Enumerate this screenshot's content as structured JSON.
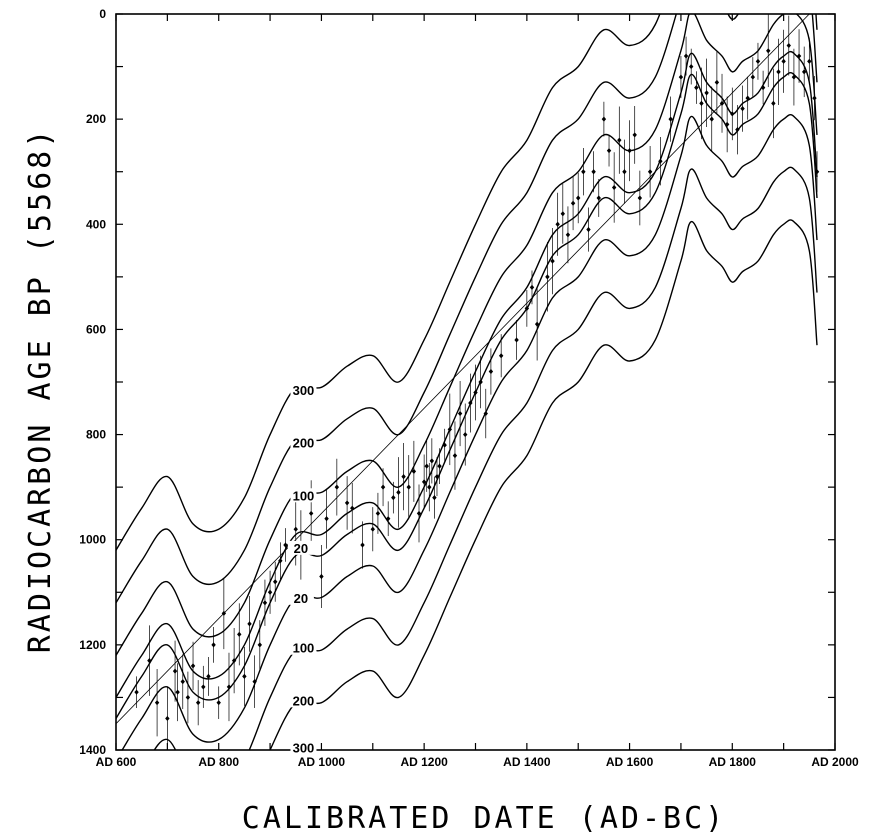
{
  "chart_data": {
    "type": "scatter",
    "xlabel": "CALIBRATED DATE (AD-BC)",
    "ylabel": "RADIOCARBON AGE BP (5568)",
    "x_tick_labels": [
      "AD 600",
      "AD 800",
      "AD 1000",
      "AD 1200",
      "AD 1400",
      "AD 1600",
      "AD 1800",
      "AD 2000"
    ],
    "y_tick_labels": [
      "0",
      "200",
      "400",
      "600",
      "800",
      "1000",
      "1200",
      "1400"
    ],
    "xlim": [
      600,
      2000
    ],
    "ylim": [
      0,
      1400
    ],
    "y_inverted": true,
    "grid": false,
    "curve_labels": [
      {
        "text": "300",
        "x": 965,
        "y": 725
      },
      {
        "text": "200",
        "x": 965,
        "y": 825
      },
      {
        "text": "100",
        "x": 965,
        "y": 925
      },
      {
        "text": "20",
        "x": 960,
        "y": 1025
      },
      {
        "text": "20",
        "x": 960,
        "y": 1120
      },
      {
        "text": "100",
        "x": 965,
        "y": 1215
      },
      {
        "text": "200",
        "x": 965,
        "y": 1315
      },
      {
        "text": "300",
        "x": 965,
        "y": 1405
      }
    ],
    "reference_line": {
      "x": [
        600,
        1950
      ],
      "y": [
        1350,
        0
      ]
    },
    "calibration_curve": {
      "x": [
        600,
        650,
        700,
        750,
        800,
        850,
        900,
        950,
        1000,
        1050,
        1100,
        1150,
        1200,
        1250,
        1300,
        1350,
        1400,
        1450,
        1500,
        1550,
        1600,
        1650,
        1700,
        1720,
        1750,
        1780,
        1800,
        1820,
        1850,
        1880,
        1900,
        1920,
        1950,
        1965
      ],
      "y": [
        1320,
        1240,
        1180,
        1270,
        1280,
        1220,
        1100,
        1010,
        1010,
        970,
        950,
        1000,
        920,
        810,
        700,
        600,
        540,
        440,
        400,
        330,
        360,
        320,
        170,
        95,
        150,
        180,
        210,
        190,
        170,
        120,
        100,
        95,
        150,
        330
      ]
    },
    "offset_curves": [
      {
        "name": "+300",
        "offset": 300
      },
      {
        "name": "+200",
        "offset": 200
      },
      {
        "name": "+100",
        "offset": 100
      },
      {
        "name": "+20",
        "offset": 20
      },
      {
        "name": "-20",
        "offset": -20
      },
      {
        "name": "-100",
        "offset": -100
      },
      {
        "name": "-200",
        "offset": -200
      },
      {
        "name": "-300",
        "offset": -300
      }
    ],
    "data_points": {
      "x": [
        640,
        665,
        680,
        700,
        715,
        720,
        730,
        740,
        750,
        760,
        770,
        780,
        790,
        800,
        810,
        820,
        830,
        840,
        850,
        860,
        870,
        880,
        890,
        900,
        910,
        920,
        930,
        950,
        960,
        980,
        1000,
        1010,
        1030,
        1050,
        1060,
        1080,
        1100,
        1110,
        1120,
        1130,
        1140,
        1150,
        1160,
        1170,
        1180,
        1190,
        1200,
        1205,
        1210,
        1215,
        1220,
        1225,
        1230,
        1240,
        1250,
        1260,
        1270,
        1280,
        1290,
        1300,
        1310,
        1320,
        1330,
        1350,
        1380,
        1400,
        1410,
        1420,
        1440,
        1450,
        1460,
        1470,
        1480,
        1490,
        1500,
        1510,
        1520,
        1530,
        1540,
        1550,
        1560,
        1570,
        1580,
        1590,
        1600,
        1610,
        1620,
        1640,
        1660,
        1680,
        1700,
        1710,
        1720,
        1730,
        1740,
        1750,
        1760,
        1770,
        1780,
        1790,
        1800,
        1810,
        1820,
        1830,
        1840,
        1850,
        1860,
        1870,
        1880,
        1890,
        1900,
        1910,
        1920,
        1930,
        1940,
        1950,
        1960,
        1965
      ],
      "y": [
        1290,
        1230,
        1310,
        1340,
        1250,
        1290,
        1270,
        1300,
        1240,
        1310,
        1280,
        1260,
        1200,
        1310,
        1140,
        1280,
        1230,
        1180,
        1260,
        1160,
        1270,
        1200,
        1120,
        1100,
        1080,
        1040,
        1010,
        980,
        1010,
        950,
        1070,
        960,
        900,
        930,
        940,
        1010,
        980,
        950,
        900,
        960,
        920,
        910,
        880,
        900,
        870,
        950,
        890,
        860,
        900,
        850,
        920,
        880,
        860,
        820,
        790,
        840,
        760,
        800,
        740,
        720,
        700,
        760,
        680,
        650,
        620,
        560,
        520,
        590,
        500,
        470,
        400,
        380,
        420,
        360,
        350,
        300,
        410,
        300,
        350,
        200,
        260,
        330,
        240,
        300,
        260,
        230,
        350,
        300,
        280,
        200,
        120,
        80,
        100,
        140,
        170,
        150,
        200,
        130,
        170,
        210,
        190,
        220,
        180,
        160,
        120,
        90,
        140,
        70,
        170,
        110,
        90,
        60,
        120,
        80,
        110,
        90,
        160,
        300
      ]
    }
  }
}
